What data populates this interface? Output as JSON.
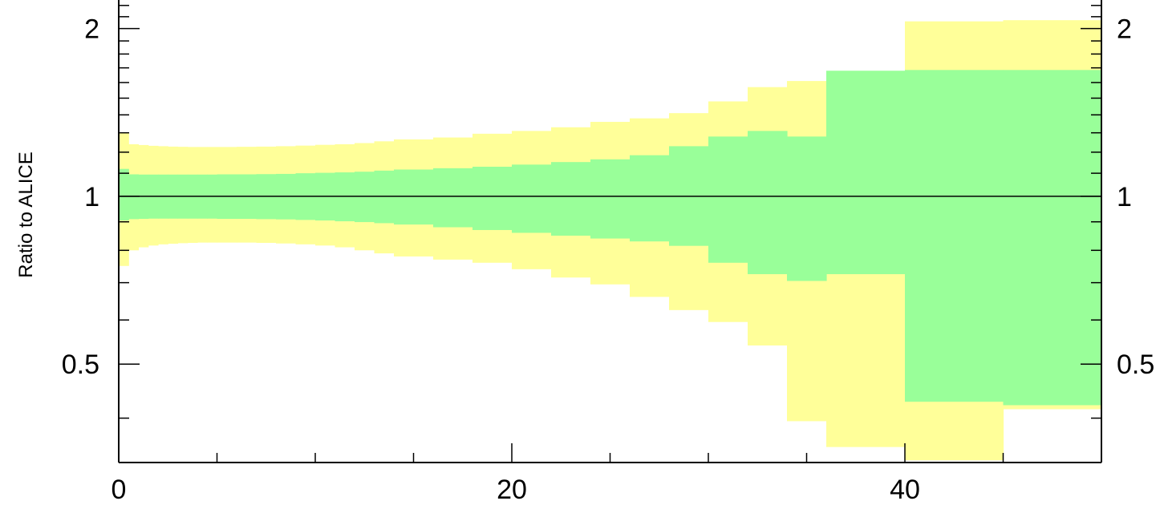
{
  "chart_data": {
    "type": "area",
    "title": "",
    "ylabel": "Ratio to ALICE",
    "xlabel": "",
    "xlim": [
      0,
      50
    ],
    "ylim": [
      0.333,
      2.25
    ],
    "y_scale": "log",
    "reference_line": 1,
    "x_ticks": [
      0,
      20,
      40
    ],
    "x_tick_labels": [
      "0",
      "20",
      "40"
    ],
    "y_ticks": [
      0.5,
      1,
      2
    ],
    "y_tick_labels": [
      "0.5",
      "1",
      "2"
    ],
    "right_y_tick_labels": [
      "0.5",
      "1",
      "2"
    ],
    "colors": {
      "outer_band": "#ffff99",
      "inner_band": "#99ff99",
      "reference_line": "#000000"
    },
    "bins": [
      0,
      0.5,
      1,
      1.5,
      2,
      2.5,
      3,
      3.5,
      4,
      4.5,
      5,
      6,
      7,
      8,
      9,
      10,
      11,
      12,
      13,
      14,
      16,
      18,
      20,
      22,
      24,
      26,
      28,
      30,
      32,
      34,
      36,
      40,
      45,
      50
    ],
    "series": [
      {
        "low": [
          0.75,
          0.8,
          0.81,
          0.816,
          0.82,
          0.822,
          0.824,
          0.825,
          0.826,
          0.826,
          0.826,
          0.826,
          0.825,
          0.823,
          0.82,
          0.816,
          0.81,
          0.8,
          0.79,
          0.78,
          0.77,
          0.76,
          0.74,
          0.715,
          0.695,
          0.66,
          0.625,
          0.595,
          0.54,
          0.395,
          0.355,
          0.336,
          0.415
        ],
        "high": [
          1.3,
          1.24,
          1.236,
          1.232,
          1.23,
          1.228,
          1.227,
          1.226,
          1.226,
          1.226,
          1.226,
          1.227,
          1.228,
          1.23,
          1.233,
          1.237,
          1.24,
          1.246,
          1.255,
          1.265,
          1.275,
          1.295,
          1.31,
          1.33,
          1.36,
          1.38,
          1.41,
          1.48,
          1.57,
          1.61,
          1.56,
          2.06,
          2.07
        ]
      },
      {
        "low": [
          0.905,
          0.91,
          0.911,
          0.912,
          0.912,
          0.912,
          0.912,
          0.912,
          0.912,
          0.912,
          0.911,
          0.911,
          0.91,
          0.909,
          0.907,
          0.905,
          0.902,
          0.899,
          0.895,
          0.89,
          0.88,
          0.87,
          0.86,
          0.85,
          0.84,
          0.83,
          0.815,
          0.76,
          0.725,
          0.705,
          0.725,
          0.428,
          0.422
        ],
        "high": [
          1.12,
          1.095,
          1.094,
          1.094,
          1.094,
          1.094,
          1.094,
          1.094,
          1.094,
          1.094,
          1.095,
          1.095,
          1.096,
          1.097,
          1.1,
          1.102,
          1.104,
          1.107,
          1.112,
          1.117,
          1.123,
          1.13,
          1.14,
          1.152,
          1.165,
          1.185,
          1.23,
          1.28,
          1.31,
          1.28,
          1.68,
          1.685,
          1.685
        ]
      }
    ]
  }
}
